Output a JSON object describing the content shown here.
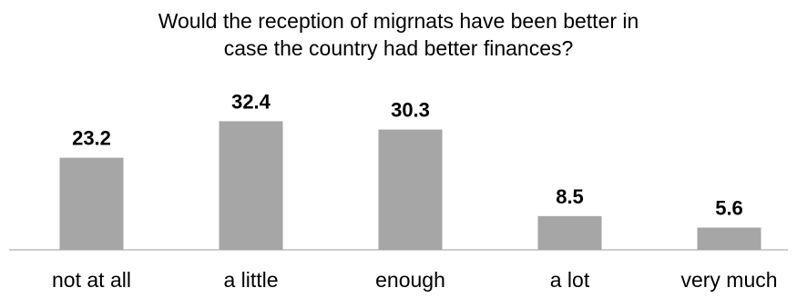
{
  "chart_data": {
    "type": "bar",
    "title_lines": [
      "Would the reception of migrnats have been better in",
      "case the country had better finances?"
    ],
    "categories": [
      "not at all",
      "a little",
      "enough",
      "a lot",
      "very much"
    ],
    "values": [
      23.2,
      32.4,
      30.3,
      8.5,
      5.6
    ],
    "data_labels": [
      "23.2",
      "32.4",
      "30.3",
      "8.5",
      "5.6"
    ],
    "xlabel": "",
    "ylabel": "",
    "ylim": [
      0,
      35
    ],
    "grid": false,
    "legend": "none",
    "bar_color": "#a6a6a6",
    "axis_color": "#bfbfbf"
  }
}
